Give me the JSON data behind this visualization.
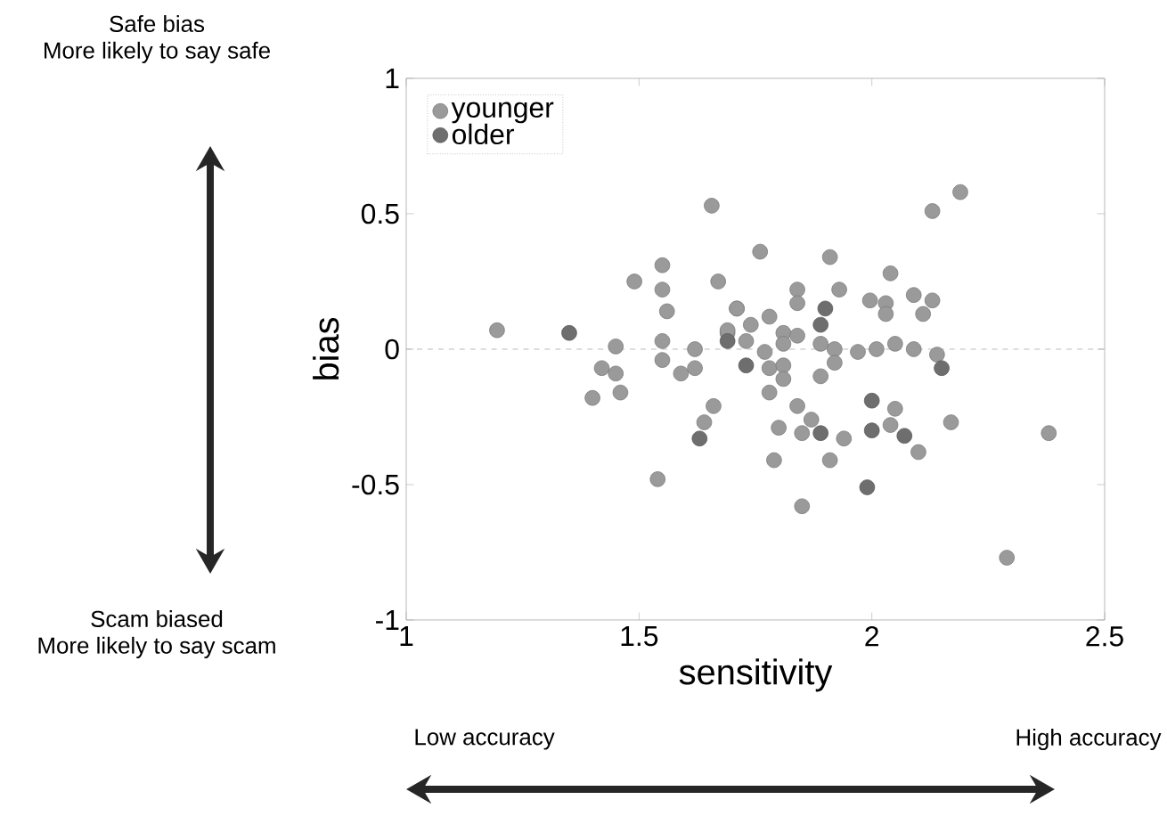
{
  "chart_data": {
    "type": "scatter",
    "xlabel": "sensitivity",
    "ylabel": "bias",
    "annotations": [
      "Safe bias\nMore likely to say safe",
      "Scam biased\nMore likely to say scam",
      "Low accuracy",
      "High accuracy"
    ],
    "series": [
      {
        "name": "younger",
        "color": "#9a9a9a",
        "x": [
          1.656,
          1.195,
          1.49,
          1.55,
          1.55,
          1.56,
          1.67,
          1.45,
          1.55,
          1.55,
          1.62,
          1.42,
          1.45,
          1.46,
          1.4,
          1.59,
          1.62,
          1.66,
          1.64,
          1.54,
          1.71,
          1.69,
          2.19,
          2.13,
          1.76,
          1.91,
          2.04,
          1.84,
          1.84,
          1.93,
          1.71,
          1.996,
          2.03,
          2.03,
          2.09,
          2.13,
          2.11,
          1.78,
          1.74,
          1.69,
          1.73,
          1.81,
          1.81,
          1.84,
          1.77,
          1.89,
          1.92,
          1.97,
          2.01,
          2.05,
          2.09,
          2.14,
          1.92,
          1.78,
          1.81,
          1.81,
          1.89,
          1.78,
          1.84,
          1.87,
          1.85,
          1.8,
          1.94,
          2.05,
          2.04,
          2.1,
          2.17,
          2.38,
          1.79,
          1.91,
          1.85,
          2.29
        ],
        "values": [
          0.53,
          0.07,
          0.25,
          0.31,
          0.22,
          0.14,
          0.25,
          0.01,
          0.03,
          -0.04,
          0.0,
          -0.07,
          -0.09,
          -0.16,
          -0.18,
          -0.09,
          -0.07,
          -0.21,
          -0.27,
          -0.48,
          0.15,
          0.06,
          0.58,
          0.51,
          0.36,
          0.34,
          0.28,
          0.22,
          0.17,
          0.22,
          0.15,
          0.18,
          0.17,
          0.13,
          0.2,
          0.18,
          0.13,
          0.12,
          0.09,
          0.07,
          0.03,
          0.06,
          0.02,
          0.05,
          -0.01,
          0.02,
          0.0,
          -0.01,
          0.0,
          0.02,
          0.0,
          -0.02,
          -0.05,
          -0.07,
          -0.06,
          -0.11,
          -0.1,
          -0.16,
          -0.21,
          -0.26,
          -0.31,
          -0.29,
          -0.33,
          -0.22,
          -0.28,
          -0.38,
          -0.27,
          -0.31,
          -0.41,
          -0.41,
          -0.58,
          -0.77
        ]
      },
      {
        "name": "older",
        "color": "#6e6e6e",
        "x": [
          1.35,
          1.63,
          1.9,
          1.89,
          1.69,
          1.73,
          2.15,
          2.0,
          2.0,
          2.07,
          1.89,
          1.99
        ],
        "values": [
          0.06,
          -0.33,
          0.15,
          0.09,
          0.03,
          -0.06,
          -0.07,
          -0.19,
          -0.3,
          -0.32,
          -0.31,
          -0.51
        ]
      }
    ],
    "xlim": [
      1,
      2.5
    ],
    "ylim": [
      -1,
      1
    ],
    "xticks": [
      1,
      1.5,
      2,
      2.5
    ],
    "yticks": [
      -1,
      -0.5,
      0,
      0.5,
      1
    ],
    "ref_lines": [
      {
        "axis": "y",
        "value": 0,
        "color": "#aaaaaa",
        "line_style": "dashed"
      }
    ],
    "legend": "top left",
    "grid": false
  }
}
